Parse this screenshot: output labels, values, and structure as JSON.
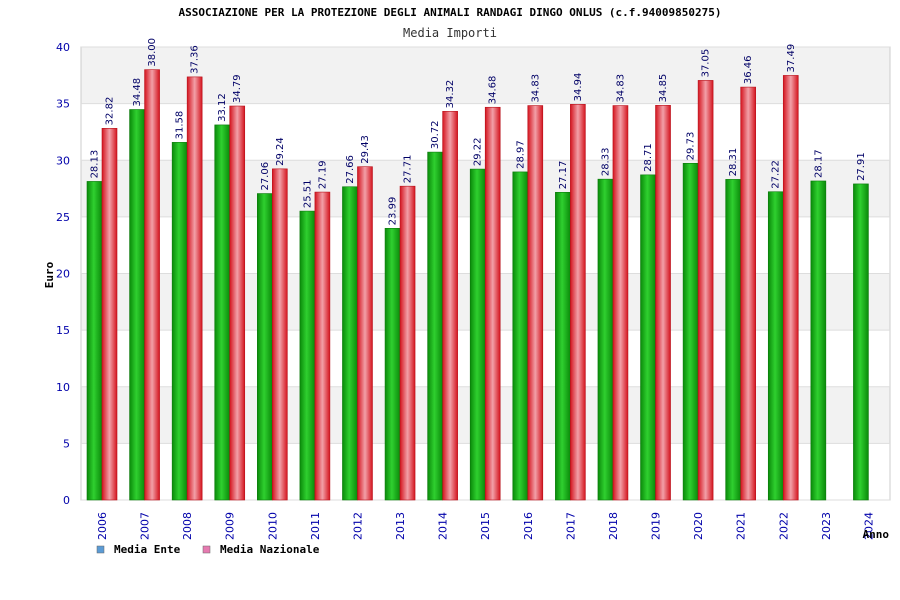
{
  "chart_data": {
    "type": "bar",
    "title": "ASSOCIAZIONE PER LA PROTEZIONE DEGLI ANIMALI RANDAGI DINGO ONLUS (c.f.94009850275)",
    "subtitle": "Media Importi",
    "xlabel": "Anno",
    "ylabel": "Euro",
    "ylim": [
      0,
      40
    ],
    "yticks": [
      0,
      5,
      10,
      15,
      20,
      25,
      30,
      35,
      40
    ],
    "grid": true,
    "legend_position": "bottom-left",
    "categories": [
      "2006",
      "2007",
      "2008",
      "2009",
      "2010",
      "2011",
      "2012",
      "2013",
      "2014",
      "2015",
      "2016",
      "2017",
      "2018",
      "2019",
      "2020",
      "2021",
      "2022",
      "2023",
      "2024"
    ],
    "series": [
      {
        "name": "Media Ente",
        "legend_color": "#5b9bd5",
        "color": "#16b416",
        "values": [
          28.13,
          34.48,
          31.58,
          33.12,
          27.06,
          25.51,
          27.66,
          23.99,
          30.72,
          29.22,
          28.97,
          27.17,
          28.33,
          28.71,
          29.73,
          28.31,
          27.22,
          28.17,
          27.91
        ],
        "labels": [
          "28.13",
          "34.48",
          "31.58",
          "33.12",
          "27.06",
          "25.51",
          "27.66",
          "23.99",
          "30.72",
          "29.22",
          "28.97",
          "27.17",
          "28.33",
          "28.71",
          "29.73",
          "28.31",
          "27.22",
          "28.17",
          "27.91"
        ]
      },
      {
        "name": "Media Nazionale",
        "legend_color": "#e67ab0",
        "color": "#e8303a",
        "values": [
          32.82,
          38.0,
          37.36,
          34.79,
          29.24,
          27.19,
          29.43,
          27.71,
          34.32,
          34.68,
          34.83,
          34.94,
          34.83,
          34.85,
          37.05,
          36.46,
          37.49,
          null,
          null
        ],
        "labels": [
          "32.82",
          "38.00",
          "37.36",
          "34.79",
          "29.24",
          "27.19",
          "29.43",
          "27.71",
          "34.32",
          "34.68",
          "34.83",
          "34.94",
          "34.83",
          "34.85",
          "37.05",
          "36.46",
          "37.49",
          "",
          ""
        ]
      }
    ]
  }
}
